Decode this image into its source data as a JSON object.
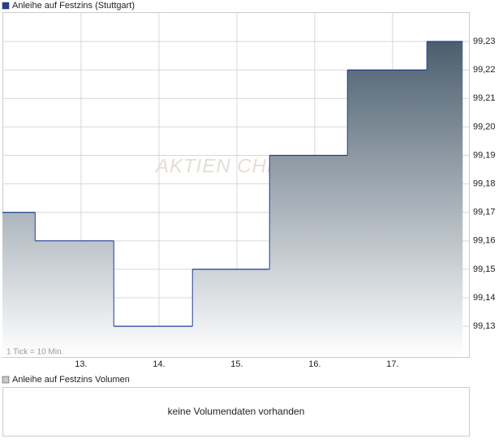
{
  "chart_data": {
    "type": "line",
    "step": true,
    "legend": "Anleihe auf Festzins (Stuttgart)",
    "color": "#1f3f9a",
    "area_top_color": "#4b5e6e",
    "watermark": "AKTIEN CHECK",
    "annotation": "1 Tick = 10 Min.",
    "x": [
      11.99,
      12.41,
      13.42,
      14.43,
      15.42,
      16.42,
      17.44,
      17.9
    ],
    "values": [
      99.17,
      99.16,
      99.13,
      99.15,
      99.19,
      99.22,
      99.23,
      99.23
    ],
    "xlim": [
      11.99,
      17.98
    ],
    "ylim": [
      99.1192,
      99.2403
    ],
    "xticks": [
      {
        "value": 13,
        "label": "13."
      },
      {
        "value": 14,
        "label": "14."
      },
      {
        "value": 15,
        "label": "15."
      },
      {
        "value": 16,
        "label": "16."
      },
      {
        "value": 17,
        "label": "17."
      }
    ],
    "yticks": [
      {
        "value": 99.13,
        "label": "99,13"
      },
      {
        "value": 99.14,
        "label": "99,14"
      },
      {
        "value": 99.15,
        "label": "99,15"
      },
      {
        "value": 99.16,
        "label": "99,16"
      },
      {
        "value": 99.17,
        "label": "99,17"
      },
      {
        "value": 99.18,
        "label": "99,18"
      },
      {
        "value": 99.19,
        "label": "99,19"
      },
      {
        "value": 99.2,
        "label": "99,20"
      },
      {
        "value": 99.21,
        "label": "99,21"
      },
      {
        "value": 99.22,
        "label": "99,22"
      },
      {
        "value": 99.23,
        "label": "99,23"
      }
    ],
    "grid": true
  },
  "volume_panel": {
    "legend": "Anleihe auf Festzins Volumen",
    "message": "keine Volumendaten vorhanden"
  }
}
